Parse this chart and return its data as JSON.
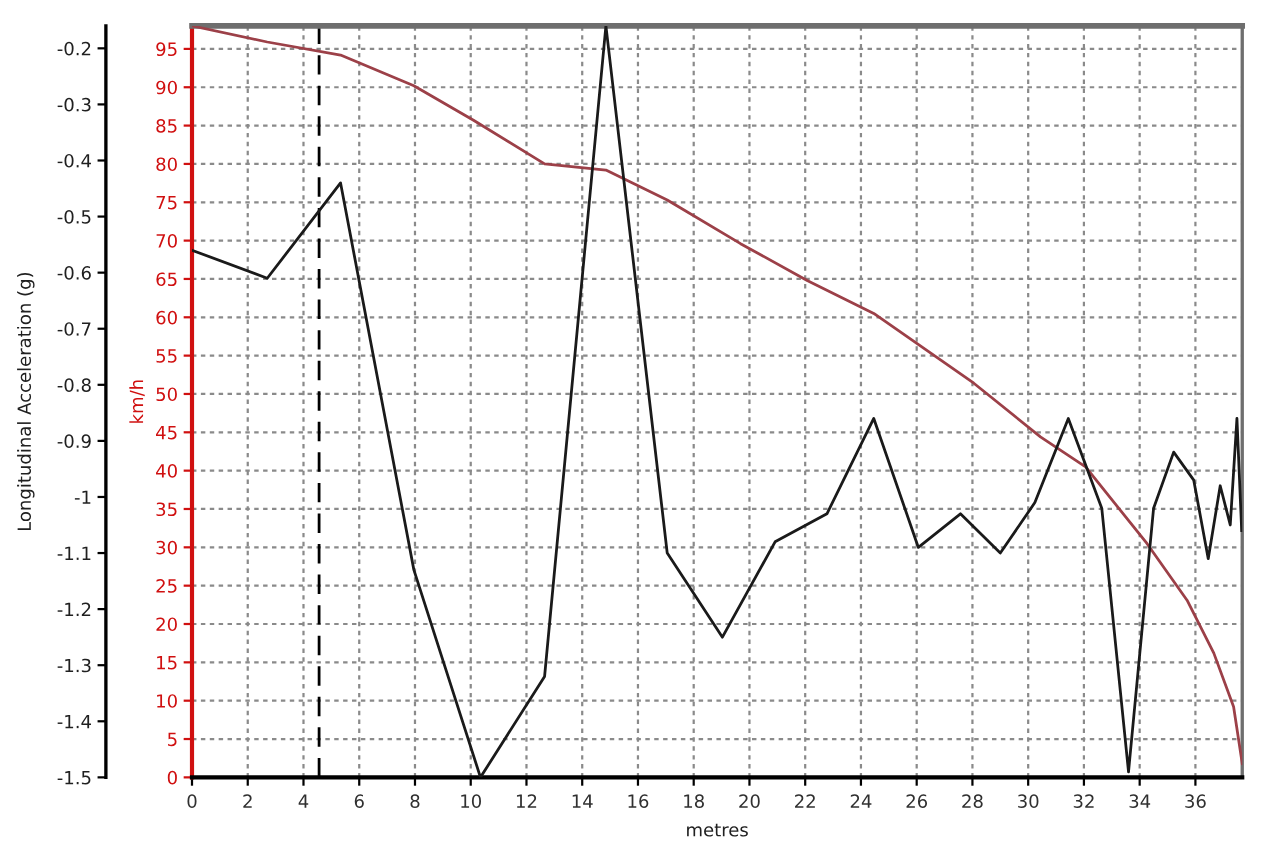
{
  "chart_data": {
    "type": "line",
    "xlabel": "metres",
    "ylabel": "Longitudinal Acceleration (g)",
    "y2label": "km/h",
    "xlim": [
      0,
      37.68
    ],
    "xticks": [
      0,
      2,
      4,
      6,
      8,
      10,
      12,
      14,
      16,
      18,
      20,
      22,
      24,
      26,
      28,
      30,
      32,
      34,
      36
    ],
    "ylim": [
      -1.5,
      -0.16
    ],
    "yticks": [
      -1.5,
      -1.4,
      -1.3,
      -1.2,
      -1.1,
      -1,
      -0.9,
      -0.8,
      -0.7,
      -0.6,
      -0.5,
      -0.4,
      -0.3,
      -0.2
    ],
    "y2lim": [
      0,
      98
    ],
    "y2ticks": [
      0,
      5,
      10,
      15,
      20,
      25,
      30,
      35,
      40,
      45,
      50,
      55,
      60,
      65,
      70,
      75,
      80,
      85,
      90,
      95
    ],
    "grid": true,
    "series": [
      {
        "color": "#1a1a1a",
        "x": [
          0,
          2.7,
          5.33,
          7.96,
          10.35,
          12.65,
          14.85,
          17.05,
          19.03,
          20.92,
          22.78,
          24.46,
          26.06,
          27.57,
          29.0,
          30.24,
          31.44,
          32.64,
          33.6,
          34.5,
          35.22,
          35.94,
          36.46,
          36.89,
          37.25,
          37.49,
          37.66
        ],
        "values": [
          -0.56,
          -0.61,
          -0.44,
          -1.13,
          -1.5,
          -1.32,
          -0.16,
          -1.1,
          -1.25,
          -1.08,
          -1.03,
          -0.86,
          -1.09,
          -1.03,
          -1.1,
          -1.01,
          -0.86,
          -1.02,
          -1.49,
          -1.02,
          -0.92,
          -0.97,
          -1.11,
          -0.98,
          -1.05,
          -0.86,
          -1.06
        ]
      },
      {
        "color": "#9c4048",
        "axis": "y2",
        "x": [
          0,
          2.7,
          5.33,
          7.96,
          10.1,
          12.65,
          14.85,
          17.05,
          19.68,
          22.07,
          24.46,
          28.05,
          30.44,
          32.06,
          34.26,
          35.7,
          36.66,
          37.37,
          37.68
        ],
        "values": [
          98,
          95.9,
          94.2,
          90.2,
          85.7,
          80,
          79.2,
          75.3,
          69.6,
          64.8,
          60.5,
          51.4,
          44.4,
          40.5,
          30.5,
          23.1,
          16.2,
          9.2,
          1.8
        ]
      }
    ],
    "ref_lines": [
      {
        "axis": "x",
        "value": 4.56,
        "color": "#000000",
        "line_style": "dashed"
      }
    ]
  }
}
